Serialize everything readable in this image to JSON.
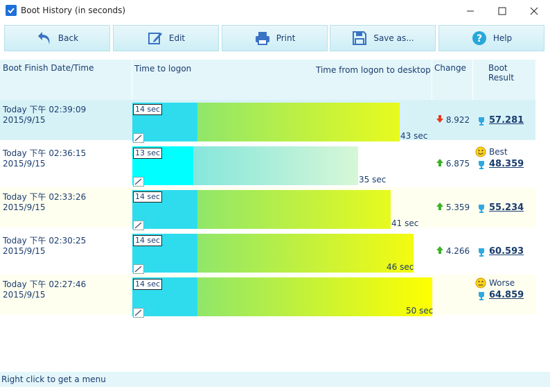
{
  "window": {
    "title": "Boot History (in seconds)"
  },
  "toolbar": {
    "back": "Back",
    "edit": "Edit",
    "print": "Print",
    "save": "Save as...",
    "help": "Help"
  },
  "columns": {
    "date": "Boot Finish Date/Time",
    "logon": "Time to logon",
    "desktop": "Time from logon to desktop",
    "change": "Change",
    "result": "Boot Result"
  },
  "rows": [
    {
      "date": "Today  下午  02:39:09",
      "date2": "2015/9/15",
      "logon": "14 sec",
      "total": "43 sec",
      "change": "8.922",
      "direction": "down",
      "result": "57.281",
      "badge": ""
    },
    {
      "date": "Today  下午  02:36:15",
      "date2": "2015/9/15",
      "logon": "13 sec",
      "total": "35 sec",
      "change": "6.875",
      "direction": "up",
      "result": "48.359",
      "badge": "Best"
    },
    {
      "date": "Today  下午  02:33:26",
      "date2": "2015/9/15",
      "logon": "14 sec",
      "total": "41 sec",
      "change": "5.359",
      "direction": "up",
      "result": "55.234",
      "badge": ""
    },
    {
      "date": "Today  下午  02:30:25",
      "date2": "2015/9/15",
      "logon": "14 sec",
      "total": "46 sec",
      "change": "4.266",
      "direction": "up",
      "result": "60.593",
      "badge": ""
    },
    {
      "date": "Today  下午  02:27:46",
      "date2": "2015/9/15",
      "logon": "14 sec",
      "total": "50 sec",
      "change": "",
      "direction": "",
      "result": "64.859",
      "badge": "Worse"
    }
  ],
  "status": "Right click to get a menu"
}
